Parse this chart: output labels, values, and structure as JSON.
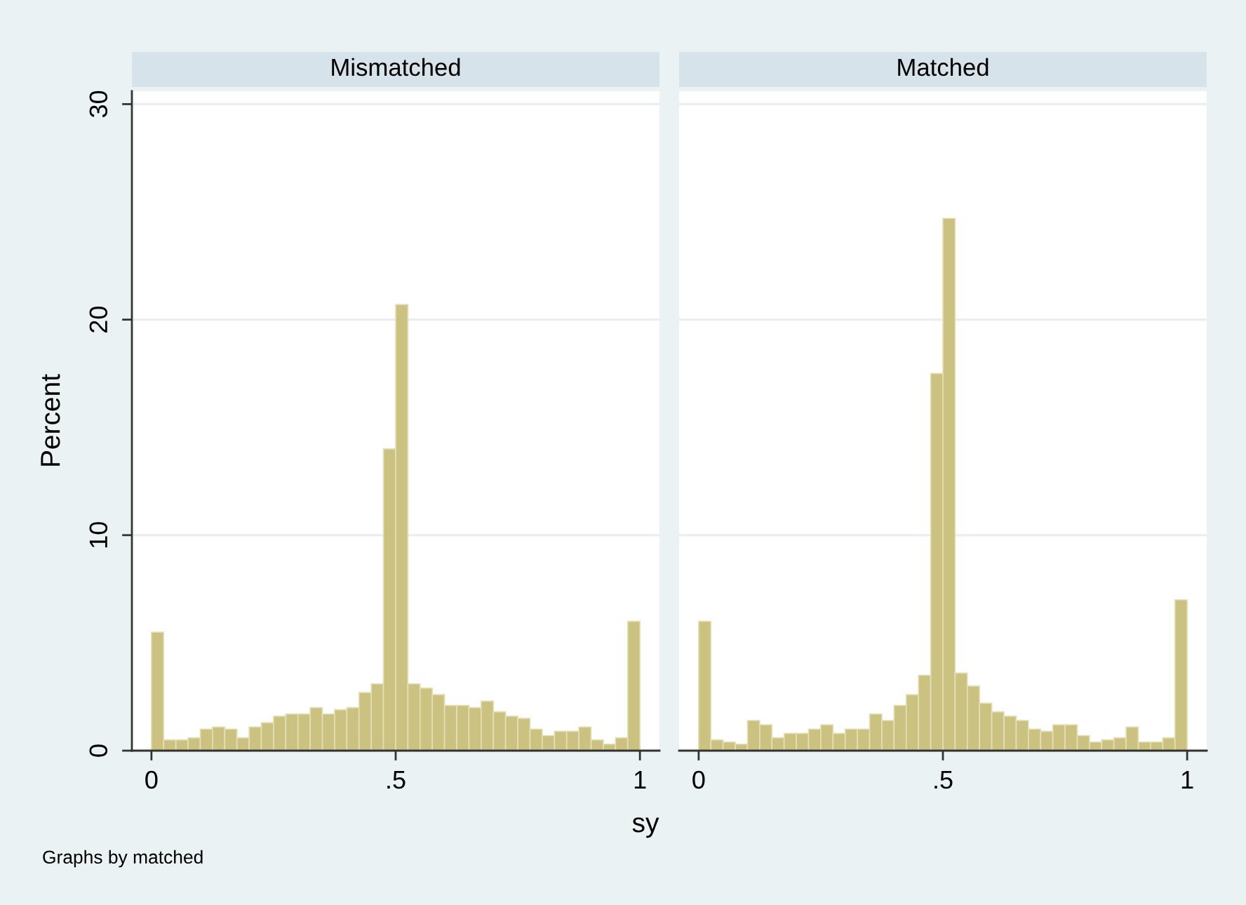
{
  "chart_data": [
    {
      "type": "histogram",
      "title": "Mismatched",
      "ylabel": "Percent",
      "xlabel": "sy",
      "annotations": [
        "Graphs by matched"
      ],
      "color": "#cbc281",
      "bins": [
        0,
        0.025,
        0.05,
        0.075,
        0.1,
        0.125,
        0.15,
        0.175,
        0.2,
        0.225,
        0.25,
        0.275,
        0.3,
        0.325,
        0.35,
        0.375,
        0.4,
        0.425,
        0.45,
        0.475,
        0.5,
        0.525,
        0.55,
        0.575,
        0.6,
        0.625,
        0.65,
        0.675,
        0.7,
        0.725,
        0.75,
        0.775,
        0.8,
        0.825,
        0.85,
        0.875,
        0.9,
        0.925,
        0.95,
        0.975,
        1
      ],
      "values": [
        5.5,
        0.5,
        0.5,
        0.6,
        1.0,
        1.1,
        1.0,
        0.6,
        1.1,
        1.3,
        1.6,
        1.7,
        1.7,
        2.0,
        1.7,
        1.9,
        2.0,
        2.7,
        3.1,
        14.0,
        20.7,
        3.1,
        2.9,
        2.6,
        2.1,
        2.1,
        2.0,
        2.3,
        1.8,
        1.6,
        1.5,
        1.0,
        0.7,
        0.9,
        0.9,
        1.1,
        0.5,
        0.3,
        0.6,
        6.0
      ],
      "xlim": [
        -0.04,
        1.04
      ],
      "xticks": [
        0,
        {
          "value": 0.5,
          "label": ".5"
        },
        1
      ],
      "ylim": [
        0,
        30.6
      ],
      "yticks": [
        0,
        10,
        20,
        30
      ],
      "grid": "y"
    },
    {
      "type": "histogram",
      "title": "Matched",
      "color": "#cbc281",
      "tick_labels": "x",
      "bins": [
        0,
        0.025,
        0.05,
        0.075,
        0.1,
        0.125,
        0.15,
        0.175,
        0.2,
        0.225,
        0.25,
        0.275,
        0.3,
        0.325,
        0.35,
        0.375,
        0.4,
        0.425,
        0.45,
        0.475,
        0.5,
        0.525,
        0.55,
        0.575,
        0.6,
        0.625,
        0.65,
        0.675,
        0.7,
        0.725,
        0.75,
        0.775,
        0.8,
        0.825,
        0.85,
        0.875,
        0.9,
        0.925,
        0.95,
        0.975,
        1
      ],
      "values": [
        6.0,
        0.5,
        0.4,
        0.3,
        1.4,
        1.2,
        0.6,
        0.8,
        0.8,
        1.0,
        1.2,
        0.8,
        1.0,
        1.0,
        1.7,
        1.4,
        2.1,
        2.6,
        3.5,
        17.5,
        24.7,
        3.6,
        3.0,
        2.2,
        1.8,
        1.6,
        1.4,
        1.0,
        0.9,
        1.2,
        1.2,
        0.7,
        0.4,
        0.5,
        0.6,
        1.1,
        0.4,
        0.4,
        0.6,
        7.0
      ],
      "xlim": [
        -0.04,
        1.04
      ],
      "xticks": [
        0,
        {
          "value": 0.5,
          "label": ".5"
        },
        1
      ],
      "ylim": [
        0,
        30.6
      ],
      "yticks": [
        0,
        10,
        20,
        30
      ],
      "grid": "y"
    }
  ]
}
